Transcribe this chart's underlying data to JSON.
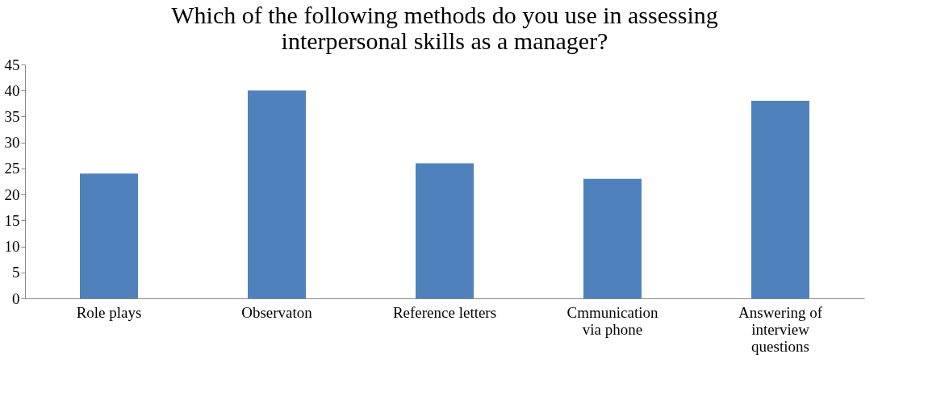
{
  "chart_data": {
    "type": "bar",
    "title": [
      "Which of the following methods do you use in assessing",
      "interpersonal skills as a manager?"
    ],
    "categories": [
      "Role plays",
      "Observaton",
      "Reference letters",
      "Cmmunication via phone",
      "Answering of interview questions"
    ],
    "values": [
      24,
      40,
      26,
      23,
      38
    ],
    "color": "#4f81bd",
    "ylim": [
      0,
      45
    ],
    "yticks": [
      0,
      5,
      10,
      15,
      20,
      25,
      30,
      35,
      40,
      45
    ],
    "grid": false
  }
}
